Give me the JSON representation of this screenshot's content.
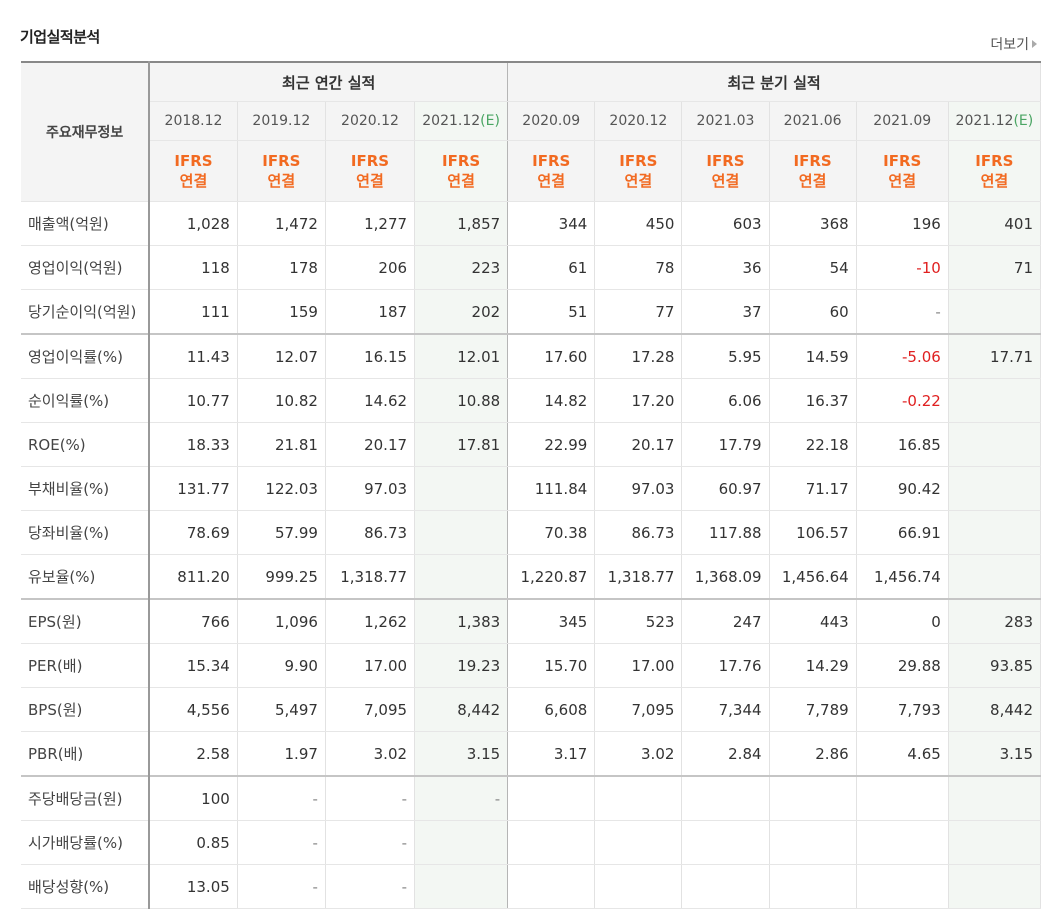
{
  "header": {
    "title": "기업실적분석",
    "more": "더보기"
  },
  "table": {
    "corner": "주요재무정보",
    "groups": [
      "최근 연간 실적",
      "최근 분기 실적"
    ],
    "periods": [
      "2018.12",
      "2019.12",
      "2020.12",
      "2021.12",
      "2020.09",
      "2020.12",
      "2021.03",
      "2021.06",
      "2021.09",
      "2021.12"
    ],
    "estimate_mark": "(E)",
    "ifrs_top": "IFRS",
    "ifrs_bottom": "연결",
    "rows": [
      {
        "label": "매출액(억원)",
        "values": [
          "1,028",
          "1,472",
          "1,277",
          "1,857",
          "344",
          "450",
          "603",
          "368",
          "196",
          "401"
        ]
      },
      {
        "label": "영업이익(억원)",
        "values": [
          "118",
          "178",
          "206",
          "223",
          "61",
          "78",
          "36",
          "54",
          "-10",
          "71"
        ]
      },
      {
        "label": "당기순이익(억원)",
        "values": [
          "111",
          "159",
          "187",
          "202",
          "51",
          "77",
          "37",
          "60",
          "-",
          ""
        ]
      },
      {
        "label": "영업이익률(%)",
        "values": [
          "11.43",
          "12.07",
          "16.15",
          "12.01",
          "17.60",
          "17.28",
          "5.95",
          "14.59",
          "-5.06",
          "17.71"
        ]
      },
      {
        "label": "순이익률(%)",
        "values": [
          "10.77",
          "10.82",
          "14.62",
          "10.88",
          "14.82",
          "17.20",
          "6.06",
          "16.37",
          "-0.22",
          ""
        ]
      },
      {
        "label": "ROE(%)",
        "values": [
          "18.33",
          "21.81",
          "20.17",
          "17.81",
          "22.99",
          "20.17",
          "17.79",
          "22.18",
          "16.85",
          ""
        ]
      },
      {
        "label": "부채비율(%)",
        "values": [
          "131.77",
          "122.03",
          "97.03",
          "",
          "111.84",
          "97.03",
          "60.97",
          "71.17",
          "90.42",
          ""
        ]
      },
      {
        "label": "당좌비율(%)",
        "values": [
          "78.69",
          "57.99",
          "86.73",
          "",
          "70.38",
          "86.73",
          "117.88",
          "106.57",
          "66.91",
          ""
        ]
      },
      {
        "label": "유보율(%)",
        "values": [
          "811.20",
          "999.25",
          "1,318.77",
          "",
          "1,220.87",
          "1,318.77",
          "1,368.09",
          "1,456.64",
          "1,456.74",
          ""
        ]
      },
      {
        "label": "EPS(원)",
        "values": [
          "766",
          "1,096",
          "1,262",
          "1,383",
          "345",
          "523",
          "247",
          "443",
          "0",
          "283"
        ]
      },
      {
        "label": "PER(배)",
        "values": [
          "15.34",
          "9.90",
          "17.00",
          "19.23",
          "15.70",
          "17.00",
          "17.76",
          "14.29",
          "29.88",
          "93.85"
        ]
      },
      {
        "label": "BPS(원)",
        "values": [
          "4,556",
          "5,497",
          "7,095",
          "8,442",
          "6,608",
          "7,095",
          "7,344",
          "7,789",
          "7,793",
          "8,442"
        ]
      },
      {
        "label": "PBR(배)",
        "values": [
          "2.58",
          "1.97",
          "3.02",
          "3.15",
          "3.17",
          "3.02",
          "2.84",
          "2.86",
          "4.65",
          "3.15"
        ]
      },
      {
        "label": "주당배당금(원)",
        "values": [
          "100",
          "-",
          "-",
          "-",
          "",
          "",
          "",
          "",
          "",
          ""
        ]
      },
      {
        "label": "시가배당률(%)",
        "values": [
          "0.85",
          "-",
          "-",
          "",
          "",
          "",
          "",
          "",
          "",
          ""
        ]
      },
      {
        "label": "배당성향(%)",
        "values": [
          "13.05",
          "-",
          "-",
          "",
          "",
          "",
          "",
          "",
          "",
          ""
        ]
      }
    ]
  },
  "colors": {
    "ifrs": "#f26a21",
    "negative": "#e02020",
    "estimate_mark": "#4aa563",
    "estimate_bg": "#f3f7f3"
  }
}
